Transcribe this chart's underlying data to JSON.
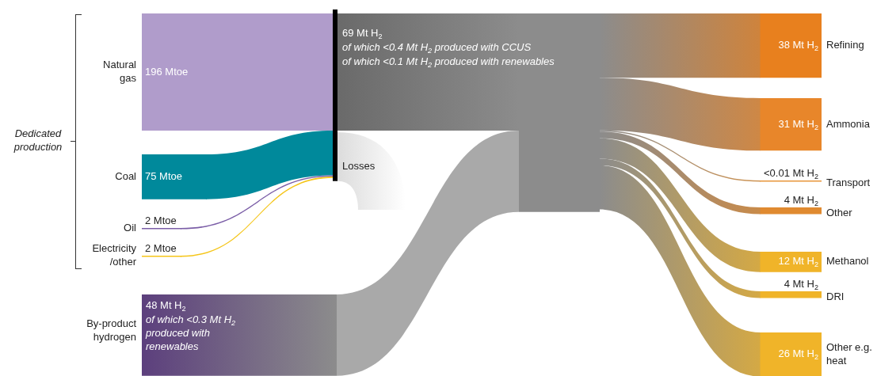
{
  "chart_data": {
    "type": "other",
    "categories": [
      "Natural gas",
      "Coal",
      "Oil",
      "Electricity /other",
      null,
      "Losses",
      "By-product hydrogen",
      "Refining",
      "Ammonia",
      "Transport",
      "Other",
      "Methanol",
      "DRI",
      "Other e.g. heat"
    ],
    "values": [
      196,
      75,
      2,
      2,
      null,
      null,
      48,
      38,
      31,
      0.01,
      4,
      12,
      4,
      26
    ],
    "value_labels": [
      "196 Mtoe",
      "75 Mtoe",
      "2 Mtoe",
      "2 Mtoe",
      null,
      null,
      "48 Mt H$_{2}$",
      "38 Mt H$_{2}$",
      "31 Mt H$_{2}$",
      "<0.01 Mt H$_{2}$",
      "4 Mt H$_{2}$",
      "12 Mt H$_{2}$",
      "4 Mt H$_{2}$",
      "26 Mt H$_{2}$"
    ],
    "colors": [
      "#b09ccb",
      "#00899b",
      "#7b5ea7",
      "#f5c518",
      "#6a6a6a",
      "#dcdcdc",
      "#5c3f7d",
      "#e8801e",
      "#e8862a",
      "#e8953a",
      "#e08a30",
      "#f0b429",
      "#f0b429",
      "#f0b429"
    ],
    "annotations": [
      "Dedicated production",
      "69 Mt H$_{2}$",
      "of which <0.4 Mt H$_{2}$ produced with CCUS",
      "of which <0.1 Mt H$_{2}$ produced with renewables",
      "of which <0.3 Mt H$_{2}$ produced with renewables"
    ]
  }
}
